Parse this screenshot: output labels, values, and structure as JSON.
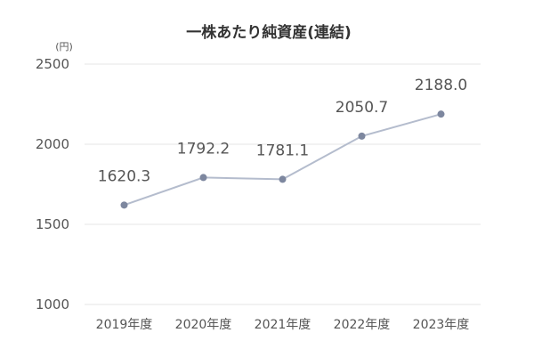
{
  "chart_data": {
    "type": "line",
    "title": "一株あたり純資産(連結)",
    "unit_label": "(円)",
    "categories": [
      "2019年度",
      "2020年度",
      "2021年度",
      "2022年度",
      "2023年度"
    ],
    "series": [
      {
        "values": [
          1620.3,
          1792.2,
          1781.1,
          2050.7,
          2188.0
        ]
      }
    ],
    "data_labels": [
      "1620.3",
      "1792.2",
      "1781.1",
      "2050.7",
      "2188.0"
    ],
    "y_ticks": [
      "1000",
      "1500",
      "2000",
      "2500"
    ],
    "ylim": [
      1000,
      2500
    ],
    "grid": true,
    "legend": "none",
    "colors": {
      "line": "#b4bccd",
      "marker": "#7d879f",
      "grid": "#e6e6e6"
    }
  }
}
